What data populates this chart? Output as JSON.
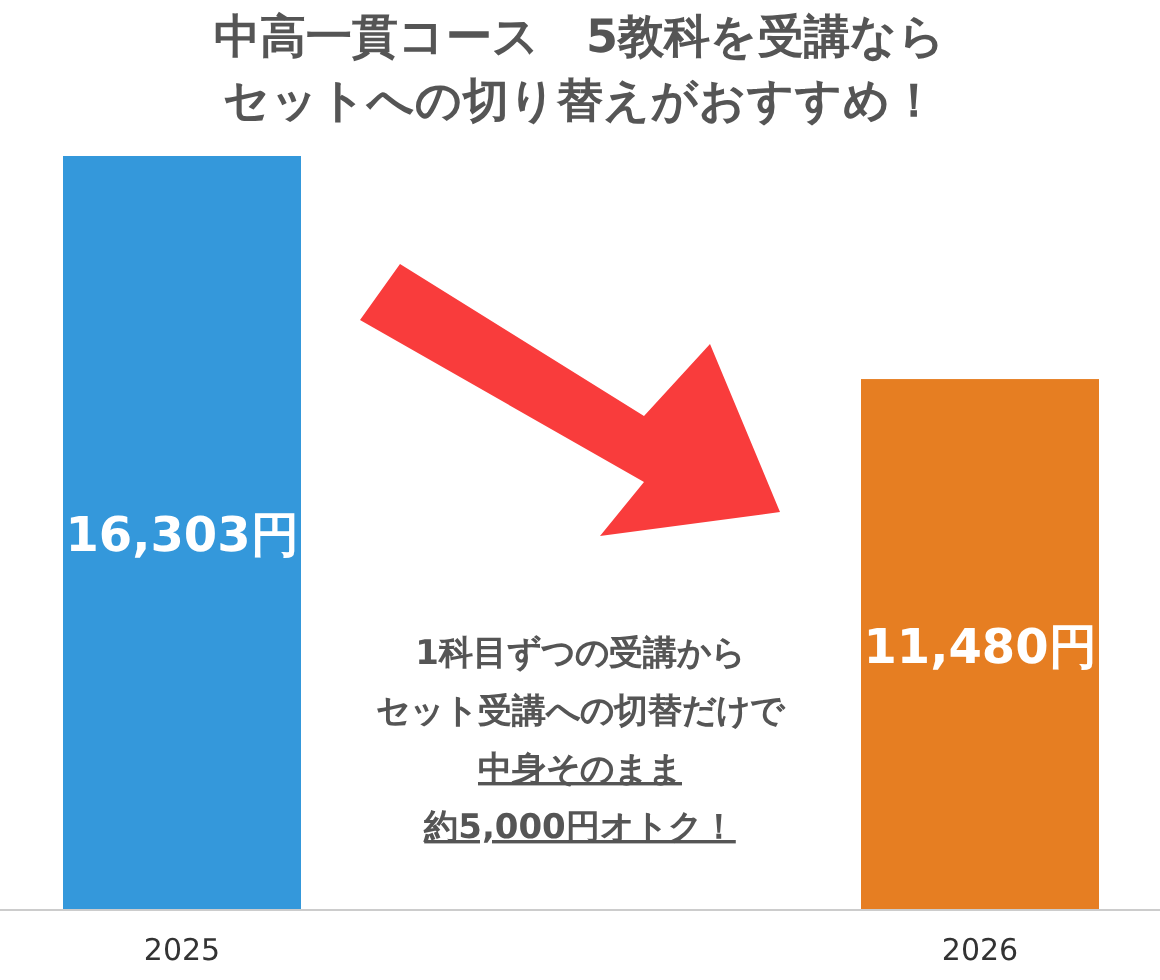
{
  "chart_data": {
    "type": "bar",
    "title": "中高一貫コース　5教科を受講ならセットへの切り替えがおすすめ！",
    "categories": [
      "2025",
      "2026"
    ],
    "values": [
      16303,
      11480
    ],
    "colors": [
      "#3498db",
      "#e67e22"
    ],
    "value_labels": [
      "16,303円",
      "11,480円"
    ],
    "annotations": [
      "1科目ずつの受講から",
      "セット受講への切替だけで",
      "中身そのまま",
      "約5,000円オトク！"
    ],
    "legend": false
  }
}
